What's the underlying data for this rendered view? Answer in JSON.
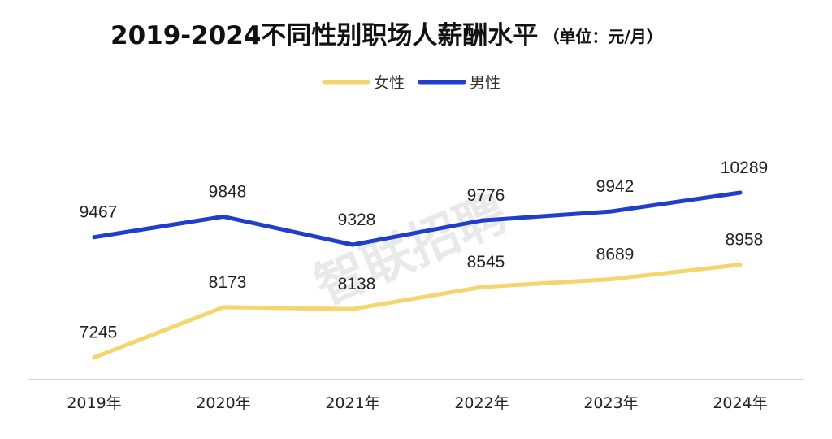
{
  "chart_data": {
    "type": "line",
    "title": "2019-2024不同性别职场人薪酬水平",
    "unit_note": "（单位：元/月）",
    "categories": [
      "2019年",
      "2020年",
      "2021年",
      "2022年",
      "2023年",
      "2024年"
    ],
    "series": [
      {
        "name": "女性",
        "color": "#f5d66e",
        "values": [
          7245,
          8173,
          8138,
          8545,
          8689,
          8958
        ]
      },
      {
        "name": "男性",
        "color": "#1f3fcb",
        "values": [
          9467,
          9848,
          9328,
          9776,
          9942,
          10289
        ]
      }
    ],
    "ylim": [
      6800,
      10800
    ],
    "grid": false,
    "legend_position": "top-center",
    "watermark": "智联招聘"
  }
}
